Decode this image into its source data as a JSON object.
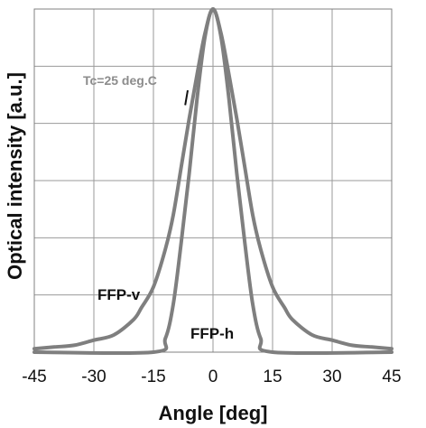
{
  "chart_data": {
    "type": "line",
    "xlabel": "Angle [deg]",
    "ylabel": "Optical intensity [a.u.]",
    "xlim": [
      -45,
      45
    ],
    "ylim": [
      0,
      1
    ],
    "xticks": [
      -45,
      -30,
      -15,
      0,
      15,
      30,
      45
    ],
    "xtick_labels": [
      "-45",
      "-30",
      "-15",
      "0",
      "15",
      "30",
      "45"
    ],
    "grid": true,
    "series": [
      {
        "name": "FFP-v",
        "color": "#7f7f7f",
        "x": [
          -45,
          -40,
          -35,
          -30,
          -25,
          -20,
          -18,
          -15,
          -12,
          -10,
          -8,
          -6,
          -4,
          -2,
          0,
          2,
          4,
          6,
          8,
          10,
          12,
          15,
          18,
          20,
          25,
          30,
          35,
          40,
          45
        ],
        "y": [
          0.01,
          0.015,
          0.02,
          0.035,
          0.05,
          0.095,
          0.13,
          0.19,
          0.3,
          0.4,
          0.54,
          0.68,
          0.81,
          0.93,
          1.0,
          0.93,
          0.81,
          0.68,
          0.54,
          0.4,
          0.3,
          0.19,
          0.13,
          0.095,
          0.05,
          0.035,
          0.02,
          0.015,
          0.01
        ]
      },
      {
        "name": "FFP-h",
        "color": "#7f7f7f",
        "x": [
          -45,
          -15,
          -12,
          -10,
          -8,
          -6,
          -4,
          -2,
          0,
          2,
          4,
          6,
          8,
          10,
          12,
          15,
          45
        ],
        "y": [
          0.0,
          0.0,
          0.04,
          0.14,
          0.32,
          0.52,
          0.74,
          0.92,
          1.0,
          0.92,
          0.74,
          0.52,
          0.32,
          0.14,
          0.04,
          0.0,
          0.0
        ]
      }
    ],
    "annotations": [
      {
        "text": "Tc=25 deg.C",
        "x": -7,
        "y": 0.72,
        "color": "#8c8c8c"
      }
    ]
  }
}
